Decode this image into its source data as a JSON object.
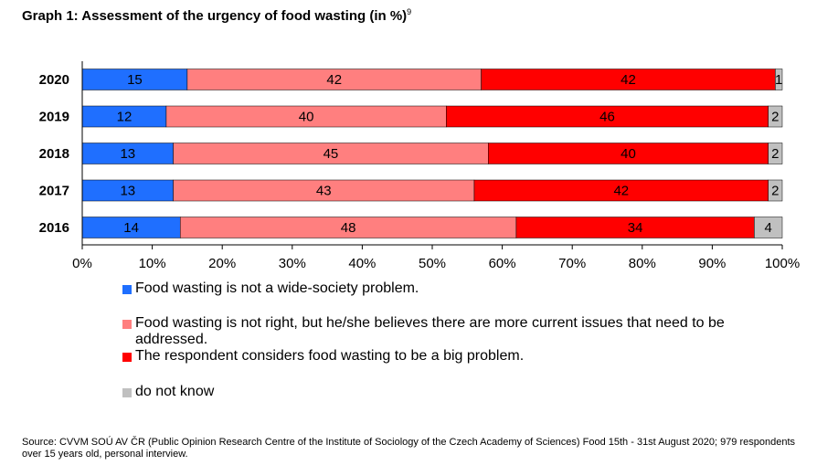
{
  "title": "Graph 1: Assessment of the urgency of food wasting (in %)",
  "title_footnote": "9",
  "chart_data": {
    "type": "bar",
    "orientation": "horizontal",
    "stacked": true,
    "categories": [
      "2020",
      "2019",
      "2018",
      "2017",
      "2016"
    ],
    "series": [
      {
        "name": "Food wasting is not a wide-society problem.",
        "color": "#1f6fff",
        "values": [
          15,
          12,
          13,
          13,
          14
        ]
      },
      {
        "name": "Food wasting is not right, but he/she believes there are more current issues that need to be addressed.",
        "color": "#ff7f7f",
        "values": [
          42,
          40,
          45,
          43,
          48
        ]
      },
      {
        "name": "The respondent considers food wasting to be a big problem.",
        "color": "#ff0000",
        "values": [
          42,
          46,
          40,
          42,
          34
        ]
      },
      {
        "name": "do not know",
        "color": "#c0c0c0",
        "values": [
          1,
          2,
          2,
          2,
          4
        ]
      }
    ],
    "xlim": [
      0,
      100
    ],
    "x_ticks": [
      "0%",
      "10%",
      "20%",
      "30%",
      "40%",
      "50%",
      "60%",
      "70%",
      "80%",
      "90%",
      "100%"
    ],
    "legend_position": "bottom",
    "grid": false
  },
  "source": "Source: CVVM SOÚ AV ČR (Public Opinion Research Centre of the Institute of Sociology of the Czech Academy of Sciences) Food 15th - 31st August 2020; 979 respondents over 15 years old, personal interview."
}
